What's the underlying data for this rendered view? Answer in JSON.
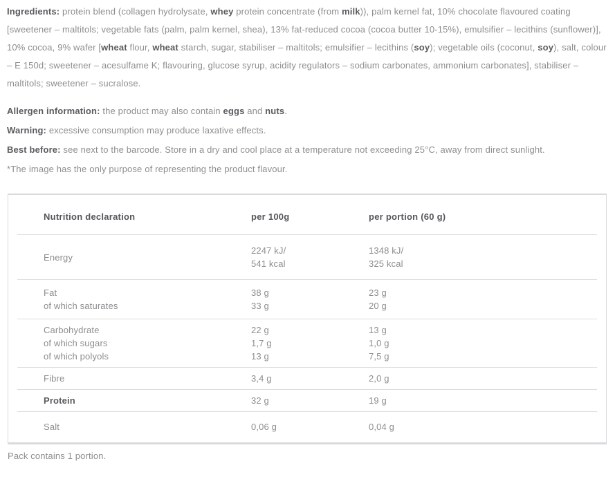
{
  "colors": {
    "text_regular": "#8c8d90",
    "text_bold": "#5a5b5f",
    "table_border": "#d9dadc"
  },
  "description": {
    "paragraphs": [
      {
        "name": "ingredients-paragraph",
        "segments": [
          {
            "text": "Ingredients: ",
            "bold": true
          },
          {
            "text": "protein blend (collagen hydrolysate, ",
            "bold": false
          },
          {
            "text": "whey",
            "bold": true
          },
          {
            "text": " protein concentrate (from ",
            "bold": false
          },
          {
            "text": "milk",
            "bold": true
          },
          {
            "text": ")), palm kernel fat, 10% chocolate flavoured coating [sweetener – maltitols; vegetable fats (palm, palm kernel, shea), 13% fat-reduced cocoa (cocoa butter 10-15%), emulsifier – lecithins (sunflower)], 10% cocoa, 9% wafer [",
            "bold": false
          },
          {
            "text": "wheat",
            "bold": true
          },
          {
            "text": " flour, ",
            "bold": false
          },
          {
            "text": "wheat",
            "bold": true
          },
          {
            "text": " starch, sugar, stabiliser – maltitols; emulsifier – lecithins (",
            "bold": false
          },
          {
            "text": "soy",
            "bold": true
          },
          {
            "text": "); vegetable oils (coconut, ",
            "bold": false
          },
          {
            "text": "soy",
            "bold": true
          },
          {
            "text": "), salt, colour – E 150d; sweetener – acesulfame K; flavouring, glucose syrup, acidity regulators – sodium carbonates, ammonium carbonates], stabiliser – maltitols; sweetener – sucralose.",
            "bold": false
          }
        ]
      },
      {
        "name": "allergen-paragraph",
        "segments": [
          {
            "text": "Allergen information: ",
            "bold": true
          },
          {
            "text": "the product may also contain ",
            "bold": false
          },
          {
            "text": "eggs",
            "bold": true
          },
          {
            "text": " and ",
            "bold": false
          },
          {
            "text": "nuts",
            "bold": true
          },
          {
            "text": ".",
            "bold": false
          }
        ]
      },
      {
        "name": "warning-paragraph",
        "segments": [
          {
            "text": "Warning: ",
            "bold": true
          },
          {
            "text": "excessive consumption may produce laxative effects.",
            "bold": false
          }
        ]
      },
      {
        "name": "best-before-paragraph",
        "segments": [
          {
            "text": "Best before: ",
            "bold": true
          },
          {
            "text": "see next to the barcode. Store in a dry and cool place at a temperature not exceeding 25°C, away from direct sunlight.",
            "bold": false
          }
        ]
      },
      {
        "name": "image-disclaimer-paragraph",
        "segments": [
          {
            "text": "*The image has the only purpose of representing the product flavour.",
            "bold": false
          }
        ]
      }
    ]
  },
  "table": {
    "header": {
      "col1": "Nutrition declaration",
      "col2": "per 100g",
      "col3": "per portion (60 g)"
    },
    "rows": [
      {
        "name": "row-energy",
        "label_lines": [
          "Energy"
        ],
        "per100_lines": [
          "2247 kJ/",
          "541 kcal"
        ],
        "portion_lines": [
          "1348 kJ/",
          "325 kcal"
        ],
        "bold_label": false
      },
      {
        "name": "row-fat",
        "label_lines": [
          "Fat",
          "of which saturates"
        ],
        "per100_lines": [
          "38 g",
          "33 g"
        ],
        "portion_lines": [
          "23 g",
          "20 g"
        ],
        "bold_label": false
      },
      {
        "name": "row-carbohydrate",
        "label_lines": [
          "Carbohydrate",
          "of which sugars",
          "of which polyols"
        ],
        "per100_lines": [
          "22 g",
          "1,7 g",
          "13 g"
        ],
        "portion_lines": [
          "13 g",
          "1,0 g",
          "7,5 g"
        ],
        "bold_label": false
      },
      {
        "name": "row-fibre",
        "label_lines": [
          "Fibre"
        ],
        "per100_lines": [
          "3,4 g"
        ],
        "portion_lines": [
          "2,0 g"
        ],
        "bold_label": false
      },
      {
        "name": "row-protein",
        "label_lines": [
          "Protein"
        ],
        "per100_lines": [
          "32 g"
        ],
        "portion_lines": [
          "19 g"
        ],
        "bold_label": true
      },
      {
        "name": "row-salt",
        "label_lines": [
          "Salt"
        ],
        "per100_lines": [
          "0,06 g"
        ],
        "portion_lines": [
          "0,04 g"
        ],
        "bold_label": false
      }
    ]
  },
  "footer": {
    "pack_note": "Pack contains 1 portion."
  }
}
